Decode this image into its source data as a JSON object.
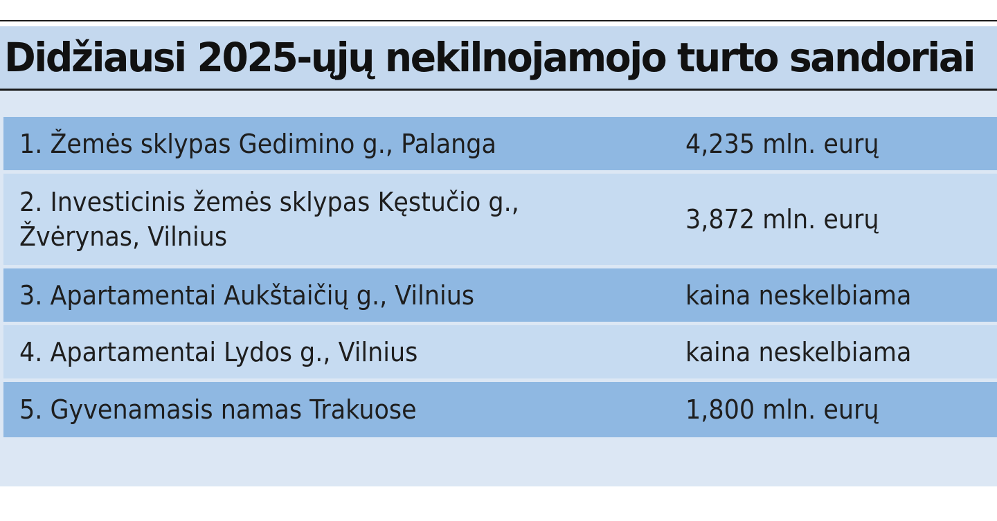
{
  "title": "Didžiausi 2025-ųjų nekilnojamojo turto sandoriai",
  "deals": [
    {
      "name": "1. Žemės sklypas Gedimino g., Palanga",
      "price": "4,235 mln. eurų"
    },
    {
      "name": "2. Investicinis žemės sklypas Kęstučio g.,\nŽvėrynas, Vilnius",
      "price": "3,872 mln. eurų"
    },
    {
      "name": "3. Apartamentai Aukštaičių g., Vilnius",
      "price": "kaina neskelbiama"
    },
    {
      "name": "4. Apartamentai Lydos g., Vilnius",
      "price": "kaina neskelbiama"
    },
    {
      "name": "5. Gyvenamasis namas Trakuose",
      "price": "1,800 mln. eurų"
    }
  ],
  "colors": {
    "title_band": "#c4d8ee",
    "panel": "#dce7f4",
    "row_dark": "#8fb8e2",
    "row_light": "#c6dbf1",
    "rule": "#1a1a1a"
  }
}
